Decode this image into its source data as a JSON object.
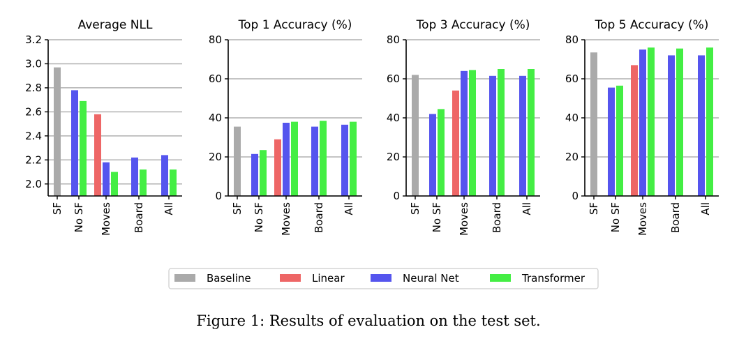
{
  "chart_data": [
    {
      "type": "bar",
      "title": "Average NLL",
      "xlabel": "",
      "ylabel": "",
      "ylim": [
        1.9,
        3.2
      ],
      "yticks": [
        "2.0",
        "2.2",
        "2.4",
        "2.6",
        "2.8",
        "3.0",
        "3.2"
      ],
      "grid": "y",
      "category_labels": [
        "SF",
        "No SF",
        "Moves",
        "Board",
        "All"
      ],
      "groups": [
        {
          "category": "SF",
          "bars": [
            {
              "series": "Baseline",
              "value": 2.97
            }
          ]
        },
        {
          "category": "No SF",
          "bars": [
            {
              "series": "Neural Net",
              "value": 2.78
            },
            {
              "series": "Transformer",
              "value": 2.69
            }
          ]
        },
        {
          "category": "Moves",
          "bars": [
            {
              "series": "Linear",
              "value": 2.58
            },
            {
              "series": "Neural Net",
              "value": 2.18
            },
            {
              "series": "Transformer",
              "value": 2.1
            }
          ]
        },
        {
          "category": "Board",
          "bars": [
            {
              "series": "Neural Net",
              "value": 2.22
            },
            {
              "series": "Transformer",
              "value": 2.12
            }
          ]
        },
        {
          "category": "All",
          "bars": [
            {
              "series": "Neural Net",
              "value": 2.24
            },
            {
              "series": "Transformer",
              "value": 2.12
            }
          ]
        }
      ]
    },
    {
      "type": "bar",
      "title": "Top 1 Accuracy (%)",
      "xlabel": "",
      "ylabel": "",
      "ylim": [
        0,
        80
      ],
      "yticks": [
        "0",
        "20",
        "40",
        "60",
        "80"
      ],
      "grid": "y",
      "category_labels": [
        "SF",
        "No SF",
        "Moves",
        "Board",
        "All"
      ],
      "groups": [
        {
          "category": "SF",
          "bars": [
            {
              "series": "Baseline",
              "value": 35.5
            }
          ]
        },
        {
          "category": "No SF",
          "bars": [
            {
              "series": "Neural Net",
              "value": 21.5
            },
            {
              "series": "Transformer",
              "value": 23.5
            }
          ]
        },
        {
          "category": "Moves",
          "bars": [
            {
              "series": "Linear",
              "value": 29
            },
            {
              "series": "Neural Net",
              "value": 37.5
            },
            {
              "series": "Transformer",
              "value": 38
            }
          ]
        },
        {
          "category": "Board",
          "bars": [
            {
              "series": "Neural Net",
              "value": 35.5
            },
            {
              "series": "Transformer",
              "value": 38.5
            }
          ]
        },
        {
          "category": "All",
          "bars": [
            {
              "series": "Neural Net",
              "value": 36.5
            },
            {
              "series": "Transformer",
              "value": 38
            }
          ]
        }
      ]
    },
    {
      "type": "bar",
      "title": "Top 3 Accuracy (%)",
      "xlabel": "",
      "ylabel": "",
      "ylim": [
        0,
        80
      ],
      "yticks": [
        "0",
        "20",
        "40",
        "60",
        "80"
      ],
      "grid": "y",
      "category_labels": [
        "SF",
        "No SF",
        "Moves",
        "Board",
        "All"
      ],
      "groups": [
        {
          "category": "SF",
          "bars": [
            {
              "series": "Baseline",
              "value": 62
            }
          ]
        },
        {
          "category": "No SF",
          "bars": [
            {
              "series": "Neural Net",
              "value": 42
            },
            {
              "series": "Transformer",
              "value": 44.5
            }
          ]
        },
        {
          "category": "Moves",
          "bars": [
            {
              "series": "Linear",
              "value": 54
            },
            {
              "series": "Neural Net",
              "value": 64
            },
            {
              "series": "Transformer",
              "value": 64.5
            }
          ]
        },
        {
          "category": "Board",
          "bars": [
            {
              "series": "Neural Net",
              "value": 61.5
            },
            {
              "series": "Transformer",
              "value": 65
            }
          ]
        },
        {
          "category": "All",
          "bars": [
            {
              "series": "Neural Net",
              "value": 61.5
            },
            {
              "series": "Transformer",
              "value": 65
            }
          ]
        }
      ]
    },
    {
      "type": "bar",
      "title": "Top 5 Accuracy (%)",
      "xlabel": "",
      "ylabel": "",
      "ylim": [
        0,
        80
      ],
      "yticks": [
        "0",
        "20",
        "40",
        "60",
        "80"
      ],
      "grid": "y",
      "category_labels": [
        "SF",
        "No SF",
        "Moves",
        "Board",
        "All"
      ],
      "groups": [
        {
          "category": "SF",
          "bars": [
            {
              "series": "Baseline",
              "value": 73.5
            }
          ]
        },
        {
          "category": "No SF",
          "bars": [
            {
              "series": "Neural Net",
              "value": 55.5
            },
            {
              "series": "Transformer",
              "value": 56.5
            }
          ]
        },
        {
          "category": "Moves",
          "bars": [
            {
              "series": "Linear",
              "value": 67
            },
            {
              "series": "Neural Net",
              "value": 75
            },
            {
              "series": "Transformer",
              "value": 76
            }
          ]
        },
        {
          "category": "Board",
          "bars": [
            {
              "series": "Neural Net",
              "value": 72
            },
            {
              "series": "Transformer",
              "value": 75.5
            }
          ]
        },
        {
          "category": "All",
          "bars": [
            {
              "series": "Neural Net",
              "value": 72
            },
            {
              "series": "Transformer",
              "value": 76
            }
          ]
        }
      ]
    }
  ],
  "legend": {
    "position": "bottom-center",
    "items": [
      {
        "label": "Baseline",
        "color": "#aaaaaa"
      },
      {
        "label": "Linear",
        "color": "#ee6666"
      },
      {
        "label": "Neural Net",
        "color": "#5555ee"
      },
      {
        "label": "Transformer",
        "color": "#44ee44"
      }
    ]
  },
  "caption": "Figure 1: Results of evaluation on the test set."
}
